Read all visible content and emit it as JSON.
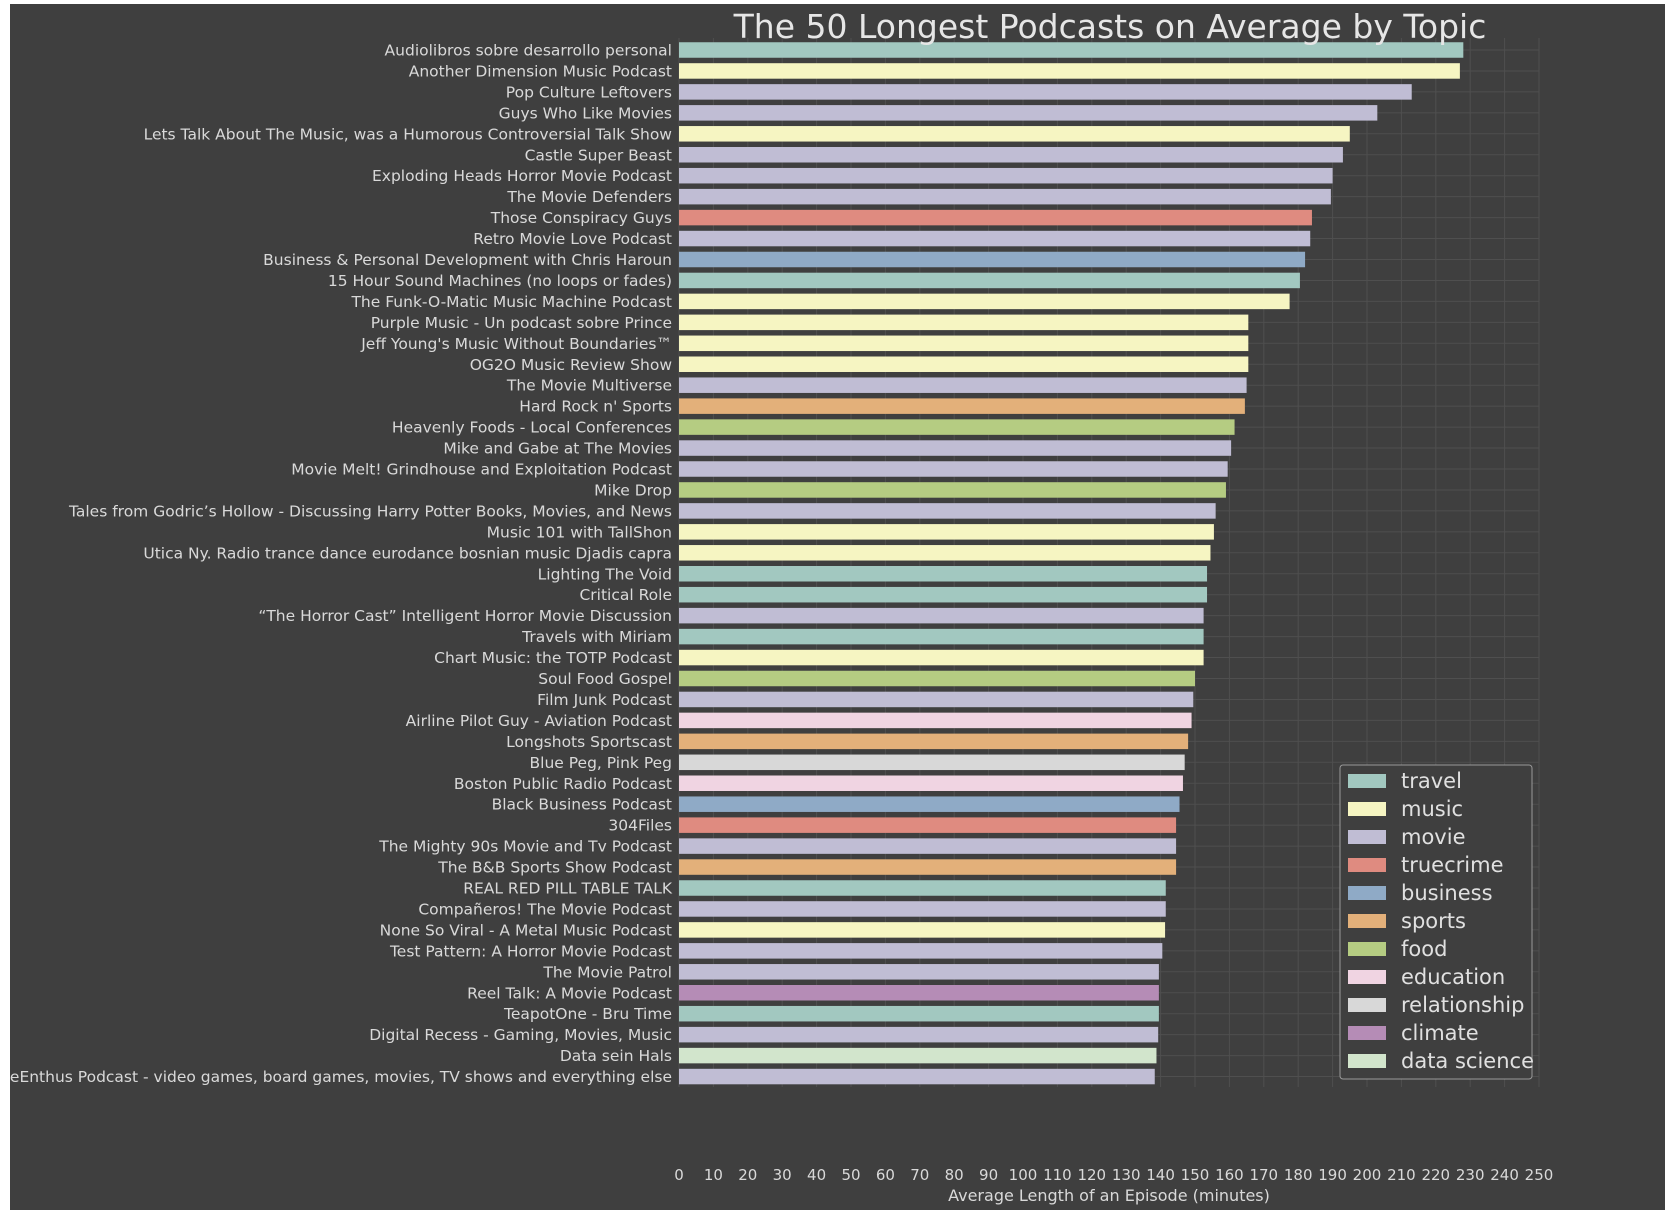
{
  "chart_data": {
    "type": "bar",
    "orientation": "horizontal",
    "title": "The 50 Longest Podcasts on Average by Topic",
    "xlabel": "Average Length of an Episode (minutes)",
    "ylabel": "",
    "xlim": [
      0,
      250
    ],
    "xticks": [
      0,
      10,
      20,
      30,
      40,
      50,
      60,
      70,
      80,
      90,
      100,
      110,
      120,
      130,
      140,
      150,
      160,
      170,
      180,
      190,
      200,
      210,
      220,
      230,
      240,
      250
    ],
    "grid": true,
    "legend_position": "bottom-right",
    "topic_colors": {
      "travel": "#a2c8c0",
      "music": "#f6f5c2",
      "movie": "#c0bdd4",
      "truecrime": "#df8b80",
      "business": "#8faac6",
      "sports": "#e3b07a",
      "food": "#b5cc82",
      "education": "#f0d4e2",
      "relationship": "#d8d8d8",
      "climate": "#b58cb6",
      "data science": "#d2e5cc"
    },
    "legend": [
      "travel",
      "music",
      "movie",
      "truecrime",
      "business",
      "sports",
      "food",
      "education",
      "relationship",
      "climate",
      "data science"
    ],
    "bars": [
      {
        "label": "Audiolibros sobre desarrollo personal",
        "value": 228,
        "topic": "travel"
      },
      {
        "label": "Another Dimension Music Podcast",
        "value": 227,
        "topic": "music"
      },
      {
        "label": "Pop Culture Leftovers",
        "value": 213,
        "topic": "movie"
      },
      {
        "label": "Guys Who Like Movies",
        "value": 203,
        "topic": "movie"
      },
      {
        "label": "Lets Talk About The Music, was a Humorous Controversial Talk Show",
        "value": 195,
        "topic": "music"
      },
      {
        "label": "Castle Super Beast",
        "value": 193,
        "topic": "movie"
      },
      {
        "label": "Exploding Heads Horror Movie Podcast",
        "value": 190,
        "topic": "movie"
      },
      {
        "label": "The Movie Defenders",
        "value": 189.5,
        "topic": "movie"
      },
      {
        "label": "Those Conspiracy Guys",
        "value": 184,
        "topic": "truecrime"
      },
      {
        "label": "Retro Movie Love Podcast",
        "value": 183.5,
        "topic": "movie"
      },
      {
        "label": "Business & Personal Development with Chris Haroun",
        "value": 182,
        "topic": "business"
      },
      {
        "label": "15 Hour Sound Machines (no loops or fades)",
        "value": 180.5,
        "topic": "travel"
      },
      {
        "label": "The Funk-O-Matic Music Machine Podcast",
        "value": 177.5,
        "topic": "music"
      },
      {
        "label": "Purple Music - Un podcast sobre Prince",
        "value": 165.5,
        "topic": "music"
      },
      {
        "label": "Jeff Young's Music Without Boundaries™",
        "value": 165.5,
        "topic": "music"
      },
      {
        "label": "OG2O Music Review Show",
        "value": 165.5,
        "topic": "music"
      },
      {
        "label": "The Movie Multiverse",
        "value": 165,
        "topic": "movie"
      },
      {
        "label": "Hard Rock n' Sports",
        "value": 164.5,
        "topic": "sports"
      },
      {
        "label": "Heavenly Foods - Local Conferences",
        "value": 161.5,
        "topic": "food"
      },
      {
        "label": "Mike and Gabe at The Movies",
        "value": 160.5,
        "topic": "movie"
      },
      {
        "label": "Movie Melt! Grindhouse and Exploitation Podcast",
        "value": 159.5,
        "topic": "movie"
      },
      {
        "label": "Mike Drop",
        "value": 159,
        "topic": "food"
      },
      {
        "label": "Tales from Godric’s Hollow - Discussing Harry Potter Books, Movies, and News",
        "value": 156,
        "topic": "movie"
      },
      {
        "label": "Music 101 with TallShon",
        "value": 155.5,
        "topic": "music"
      },
      {
        "label": "Utica Ny. Radio trance dance eurodance bosnian music Djadis capra",
        "value": 154.5,
        "topic": "music"
      },
      {
        "label": "Lighting The Void",
        "value": 153.5,
        "topic": "travel"
      },
      {
        "label": "Critical Role",
        "value": 153.5,
        "topic": "travel"
      },
      {
        "label": "“The Horror Cast” Intelligent Horror Movie Discussion",
        "value": 152.5,
        "topic": "movie"
      },
      {
        "label": "Travels with Miriam",
        "value": 152.5,
        "topic": "travel"
      },
      {
        "label": "Chart Music: the TOTP Podcast",
        "value": 152.5,
        "topic": "music"
      },
      {
        "label": "Soul Food Gospel",
        "value": 150,
        "topic": "food"
      },
      {
        "label": "Film Junk Podcast",
        "value": 149.5,
        "topic": "movie"
      },
      {
        "label": "Airline Pilot Guy - Aviation Podcast",
        "value": 149,
        "topic": "education"
      },
      {
        "label": "Longshots Sportscast",
        "value": 148,
        "topic": "sports"
      },
      {
        "label": "Blue Peg, Pink Peg",
        "value": 147,
        "topic": "relationship"
      },
      {
        "label": "Boston Public Radio Podcast",
        "value": 146.5,
        "topic": "education"
      },
      {
        "label": "Black Business Podcast",
        "value": 145.5,
        "topic": "business"
      },
      {
        "label": "304Files",
        "value": 144.5,
        "topic": "truecrime"
      },
      {
        "label": "The Mighty 90s Movie and Tv Podcast",
        "value": 144.5,
        "topic": "movie"
      },
      {
        "label": "The B&B Sports Show Podcast",
        "value": 144.5,
        "topic": "sports"
      },
      {
        "label": "REAL RED PILL TABLE TALK",
        "value": 141.5,
        "topic": "travel"
      },
      {
        "label": "Compañeros! The Movie Podcast",
        "value": 141.5,
        "topic": "movie"
      },
      {
        "label": "None So Viral - A Metal Music Podcast",
        "value": 141.3,
        "topic": "music"
      },
      {
        "label": "Test Pattern: A Horror Movie Podcast",
        "value": 140.5,
        "topic": "movie"
      },
      {
        "label": "The Movie Patrol",
        "value": 139.5,
        "topic": "movie"
      },
      {
        "label": "Reel Talk: A Movie Podcast",
        "value": 139.5,
        "topic": "climate"
      },
      {
        "label": "TeapotOne - Bru Time",
        "value": 139.5,
        "topic": "travel"
      },
      {
        "label": "Digital Recess - Gaming, Movies, Music",
        "value": 139.3,
        "topic": "movie"
      },
      {
        "label": "Data sein Hals",
        "value": 138.8,
        "topic": "data science"
      },
      {
        "label": "GameEnthus Podcast - video games, board games, movies, TV shows and everything else",
        "value": 138.3,
        "topic": "movie"
      }
    ]
  }
}
